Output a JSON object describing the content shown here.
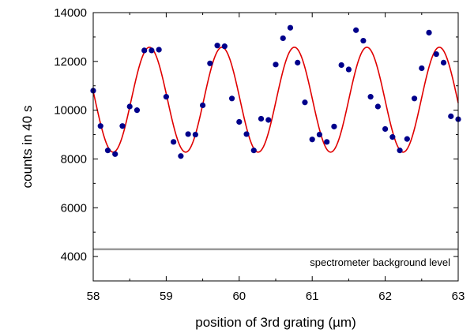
{
  "chart_data": {
    "type": "scatter",
    "xlabel": "position of 3rd grating (µm)",
    "ylabel": "counts in 40 s",
    "xlim": [
      58,
      63
    ],
    "ylim": [
      3000,
      14000
    ],
    "x_ticks": [
      "58",
      "59",
      "60",
      "61",
      "62",
      "63"
    ],
    "y_ticks": [
      "4000",
      "6000",
      "8000",
      "10000",
      "12000",
      "14000"
    ],
    "grid": false,
    "colors": {
      "points": "#00008B",
      "fit": "#E00000",
      "background_line": "#999999",
      "axes": "#000000"
    },
    "series": [
      {
        "kind": "points",
        "x": [
          58.0,
          58.1,
          58.2,
          58.3,
          58.4,
          58.5,
          58.6,
          58.7,
          58.8,
          58.9,
          59.0,
          59.1,
          59.2,
          59.3,
          59.4,
          59.5,
          59.6,
          59.7,
          59.8,
          59.9,
          60.0,
          60.1,
          60.2,
          60.3,
          60.4,
          60.5,
          60.6,
          60.7,
          60.8,
          60.9,
          61.0,
          61.1,
          61.2,
          61.3,
          61.4,
          61.5,
          61.6,
          61.7,
          61.8,
          61.9,
          62.0,
          62.1,
          62.2,
          62.3,
          62.4,
          62.5,
          62.6,
          62.7,
          62.8,
          62.9,
          63.0
        ],
        "y": [
          10800,
          9350,
          8350,
          8200,
          9350,
          10150,
          10000,
          12450,
          12450,
          12480,
          10550,
          8700,
          8120,
          9020,
          9000,
          10200,
          11920,
          12650,
          12620,
          10480,
          9520,
          9020,
          8350,
          9650,
          9600,
          11870,
          12950,
          13380,
          11950,
          10320,
          8800,
          9000,
          8700,
          9330,
          11850,
          11670,
          13280,
          12850,
          10550,
          10150,
          9230,
          8900,
          8350,
          8820,
          10480,
          11720,
          13180,
          12300,
          11950,
          9750,
          9630
        ]
      },
      {
        "kind": "fit",
        "form": "sine",
        "mean": 10430,
        "amplitude": 2150,
        "period": 0.993,
        "peak_x": 58.77
      },
      {
        "kind": "background",
        "y": 4300
      }
    ],
    "annotations": [
      {
        "text": "spectrometer background level"
      }
    ]
  }
}
